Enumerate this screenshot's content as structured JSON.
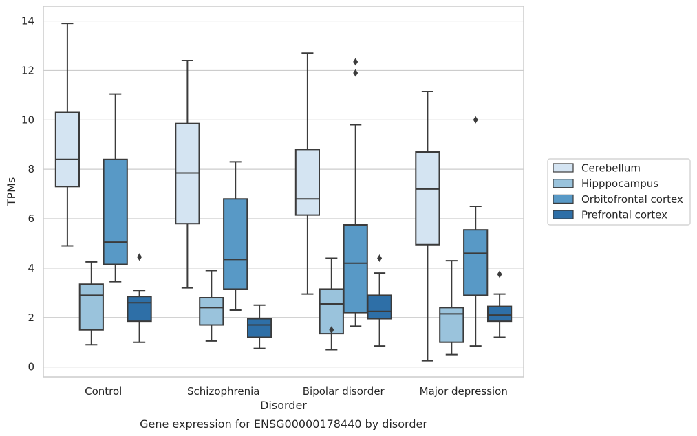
{
  "chart_data": {
    "type": "box",
    "title": "Gene expression for ENSG00000178440 by disorder",
    "xlabel": "Disorder",
    "ylabel": "TPMs",
    "ylim": [
      -0.4,
      14.6
    ],
    "yticks": [
      0,
      2,
      4,
      6,
      8,
      10,
      12,
      14
    ],
    "grid": "horizontal",
    "legend_position": "right",
    "categories": [
      "Control",
      "Schizophrenia",
      "Bipolar disorder",
      "Major depression"
    ],
    "series": [
      {
        "name": "Cerebellum",
        "color": "#d4e4f2",
        "boxes": [
          {
            "whisker_low": 4.9,
            "q1": 7.3,
            "median": 8.4,
            "q3": 10.3,
            "whisker_high": 13.9,
            "outliers": []
          },
          {
            "whisker_low": 3.2,
            "q1": 5.8,
            "median": 7.85,
            "q3": 9.85,
            "whisker_high": 12.4,
            "outliers": []
          },
          {
            "whisker_low": 2.95,
            "q1": 6.15,
            "median": 6.8,
            "q3": 8.8,
            "whisker_high": 12.7,
            "outliers": []
          },
          {
            "whisker_low": 0.25,
            "q1": 4.95,
            "median": 7.2,
            "q3": 8.7,
            "whisker_high": 11.15,
            "outliers": []
          }
        ]
      },
      {
        "name": "Hipppocampus",
        "color": "#9ac3dc",
        "boxes": [
          {
            "whisker_low": 0.9,
            "q1": 1.5,
            "median": 2.9,
            "q3": 3.35,
            "whisker_high": 4.25,
            "outliers": []
          },
          {
            "whisker_low": 1.05,
            "q1": 1.7,
            "median": 2.4,
            "q3": 2.8,
            "whisker_high": 3.9,
            "outliers": []
          },
          {
            "whisker_low": 0.7,
            "q1": 1.35,
            "median": 2.55,
            "q3": 3.15,
            "whisker_high": 4.4,
            "outliers": [
              1.5
            ]
          },
          {
            "whisker_low": 0.5,
            "q1": 1.0,
            "median": 2.15,
            "q3": 2.4,
            "whisker_high": 4.3,
            "outliers": []
          }
        ]
      },
      {
        "name": "Orbitofrontal cortex",
        "color": "#5899c6",
        "boxes": [
          {
            "whisker_low": 3.45,
            "q1": 4.15,
            "median": 5.05,
            "q3": 8.4,
            "whisker_high": 11.05,
            "outliers": []
          },
          {
            "whisker_low": 2.3,
            "q1": 3.15,
            "median": 4.35,
            "q3": 6.8,
            "whisker_high": 8.3,
            "outliers": []
          },
          {
            "whisker_low": 1.65,
            "q1": 2.2,
            "median": 4.2,
            "q3": 5.75,
            "whisker_high": 9.8,
            "outliers": [
              11.9,
              12.35
            ]
          },
          {
            "whisker_low": 0.85,
            "q1": 2.9,
            "median": 4.6,
            "q3": 5.55,
            "whisker_high": 6.5,
            "outliers": [
              10.0
            ]
          }
        ]
      },
      {
        "name": "Prefrontal cortex",
        "color": "#2e6fa7",
        "boxes": [
          {
            "whisker_low": 1.0,
            "q1": 1.85,
            "median": 2.6,
            "q3": 2.85,
            "whisker_high": 3.1,
            "outliers": [
              4.45
            ]
          },
          {
            "whisker_low": 0.75,
            "q1": 1.2,
            "median": 1.7,
            "q3": 1.95,
            "whisker_high": 2.5,
            "outliers": []
          },
          {
            "whisker_low": 0.85,
            "q1": 1.95,
            "median": 2.25,
            "q3": 2.9,
            "whisker_high": 3.8,
            "outliers": [
              4.4
            ]
          },
          {
            "whisker_low": 1.2,
            "q1": 1.85,
            "median": 2.1,
            "q3": 2.45,
            "whisker_high": 2.95,
            "outliers": [
              3.75
            ]
          }
        ]
      }
    ],
    "style": {
      "edge_color": "#3b3b3b",
      "grid_color": "#cccccc",
      "frame_color": "#cccccc",
      "background": "#ffffff"
    }
  }
}
